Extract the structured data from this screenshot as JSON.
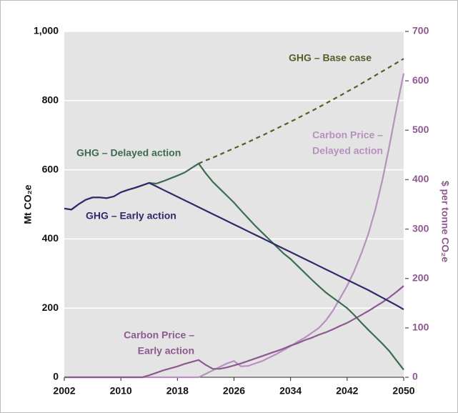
{
  "chart_data": {
    "type": "line",
    "ylabel": "Mt CO₂e",
    "y2label": "$ per tonne CO₂e",
    "x": [
      2002,
      2003,
      2004,
      2005,
      2006,
      2007,
      2008,
      2009,
      2010,
      2011,
      2012,
      2013,
      2014,
      2015,
      2016,
      2017,
      2018,
      2019,
      2020,
      2021,
      2022,
      2023,
      2024,
      2025,
      2026,
      2027,
      2028,
      2029,
      2030,
      2031,
      2032,
      2033,
      2034,
      2035,
      2036,
      2037,
      2038,
      2039,
      2040,
      2041,
      2042,
      2043,
      2044,
      2045,
      2046,
      2047,
      2048,
      2049,
      2050
    ],
    "xlim": [
      2002,
      2050
    ],
    "xticks": [
      2002,
      2010,
      2018,
      2026,
      2034,
      2042,
      2050
    ],
    "ylim": [
      0,
      1000
    ],
    "yticks": [
      0,
      200,
      400,
      600,
      800,
      {
        "value": 1000,
        "label": "1,000"
      }
    ],
    "y2lim": [
      0,
      700
    ],
    "y2ticks": [
      0,
      100,
      200,
      300,
      400,
      500,
      600,
      700
    ],
    "grid": true,
    "series": [
      {
        "label": [
          "GHG – Base case"
        ],
        "color": "#5b5b2a",
        "dashed": true,
        "values": [
          null,
          null,
          null,
          null,
          null,
          null,
          null,
          null,
          null,
          null,
          null,
          null,
          null,
          null,
          null,
          null,
          null,
          null,
          null,
          618,
          627,
          635,
          644,
          653,
          662,
          671,
          680,
          690,
          699,
          709,
          719,
          729,
          739,
          749,
          760,
          770,
          781,
          792,
          803,
          814,
          826,
          837,
          849,
          861,
          873,
          885,
          897,
          909,
          921
        ]
      },
      {
        "label": [
          "GHG – Early action"
        ],
        "color": "#2e2a6b",
        "values": [
          488,
          485,
          500,
          513,
          520,
          520,
          518,
          523,
          535,
          542,
          548,
          555,
          562,
          552,
          542,
          532,
          522,
          512,
          502,
          492,
          482,
          472,
          462,
          452,
          442,
          432,
          422,
          412,
          402,
          392,
          382,
          372,
          362,
          352,
          342,
          332,
          322,
          312,
          302,
          292,
          282,
          272,
          262,
          252,
          241,
          230,
          219,
          208,
          196
        ]
      },
      {
        "label": [
          "GHG – Delayed action"
        ],
        "color": "#3e6b50",
        "values": [
          488,
          485,
          500,
          513,
          520,
          520,
          518,
          523,
          535,
          542,
          548,
          555,
          562,
          560,
          567,
          575,
          583,
          592,
          605,
          618,
          590,
          565,
          545,
          525,
          505,
          482,
          460,
          438,
          418,
          398,
          378,
          358,
          342,
          322,
          302,
          282,
          263,
          245,
          230,
          215,
          200,
          180,
          158,
          137,
          117,
          97,
          75,
          48,
          22
        ]
      },
      {
        "label": [
          "Carbon Price –",
          "Early action"
        ],
        "color": "#8c5a8f",
        "axis": "y2",
        "values": [
          0,
          0,
          0,
          0,
          0,
          0,
          0,
          0,
          0,
          0,
          0,
          0,
          4,
          9,
          14,
          18,
          22,
          27,
          31,
          35,
          25,
          17,
          17,
          20,
          24,
          28,
          33,
          38,
          43,
          48,
          53,
          58,
          64,
          69,
          75,
          80,
          86,
          91,
          97,
          104,
          110,
          118,
          126,
          134,
          143,
          152,
          162,
          173,
          185
        ]
      },
      {
        "label": [
          "Carbon Price –",
          "Delayed action"
        ],
        "color": "#b890bf",
        "axis": "y2",
        "values": [
          0,
          0,
          0,
          0,
          0,
          0,
          0,
          0,
          0,
          0,
          0,
          0,
          0,
          0,
          0,
          0,
          0,
          0,
          0,
          0,
          7,
          14,
          21,
          28,
          33,
          22,
          23,
          28,
          33,
          40,
          47,
          55,
          63,
          72,
          80,
          90,
          100,
          115,
          135,
          160,
          185,
          215,
          250,
          290,
          340,
          400,
          470,
          545,
          615
        ]
      }
    ]
  }
}
